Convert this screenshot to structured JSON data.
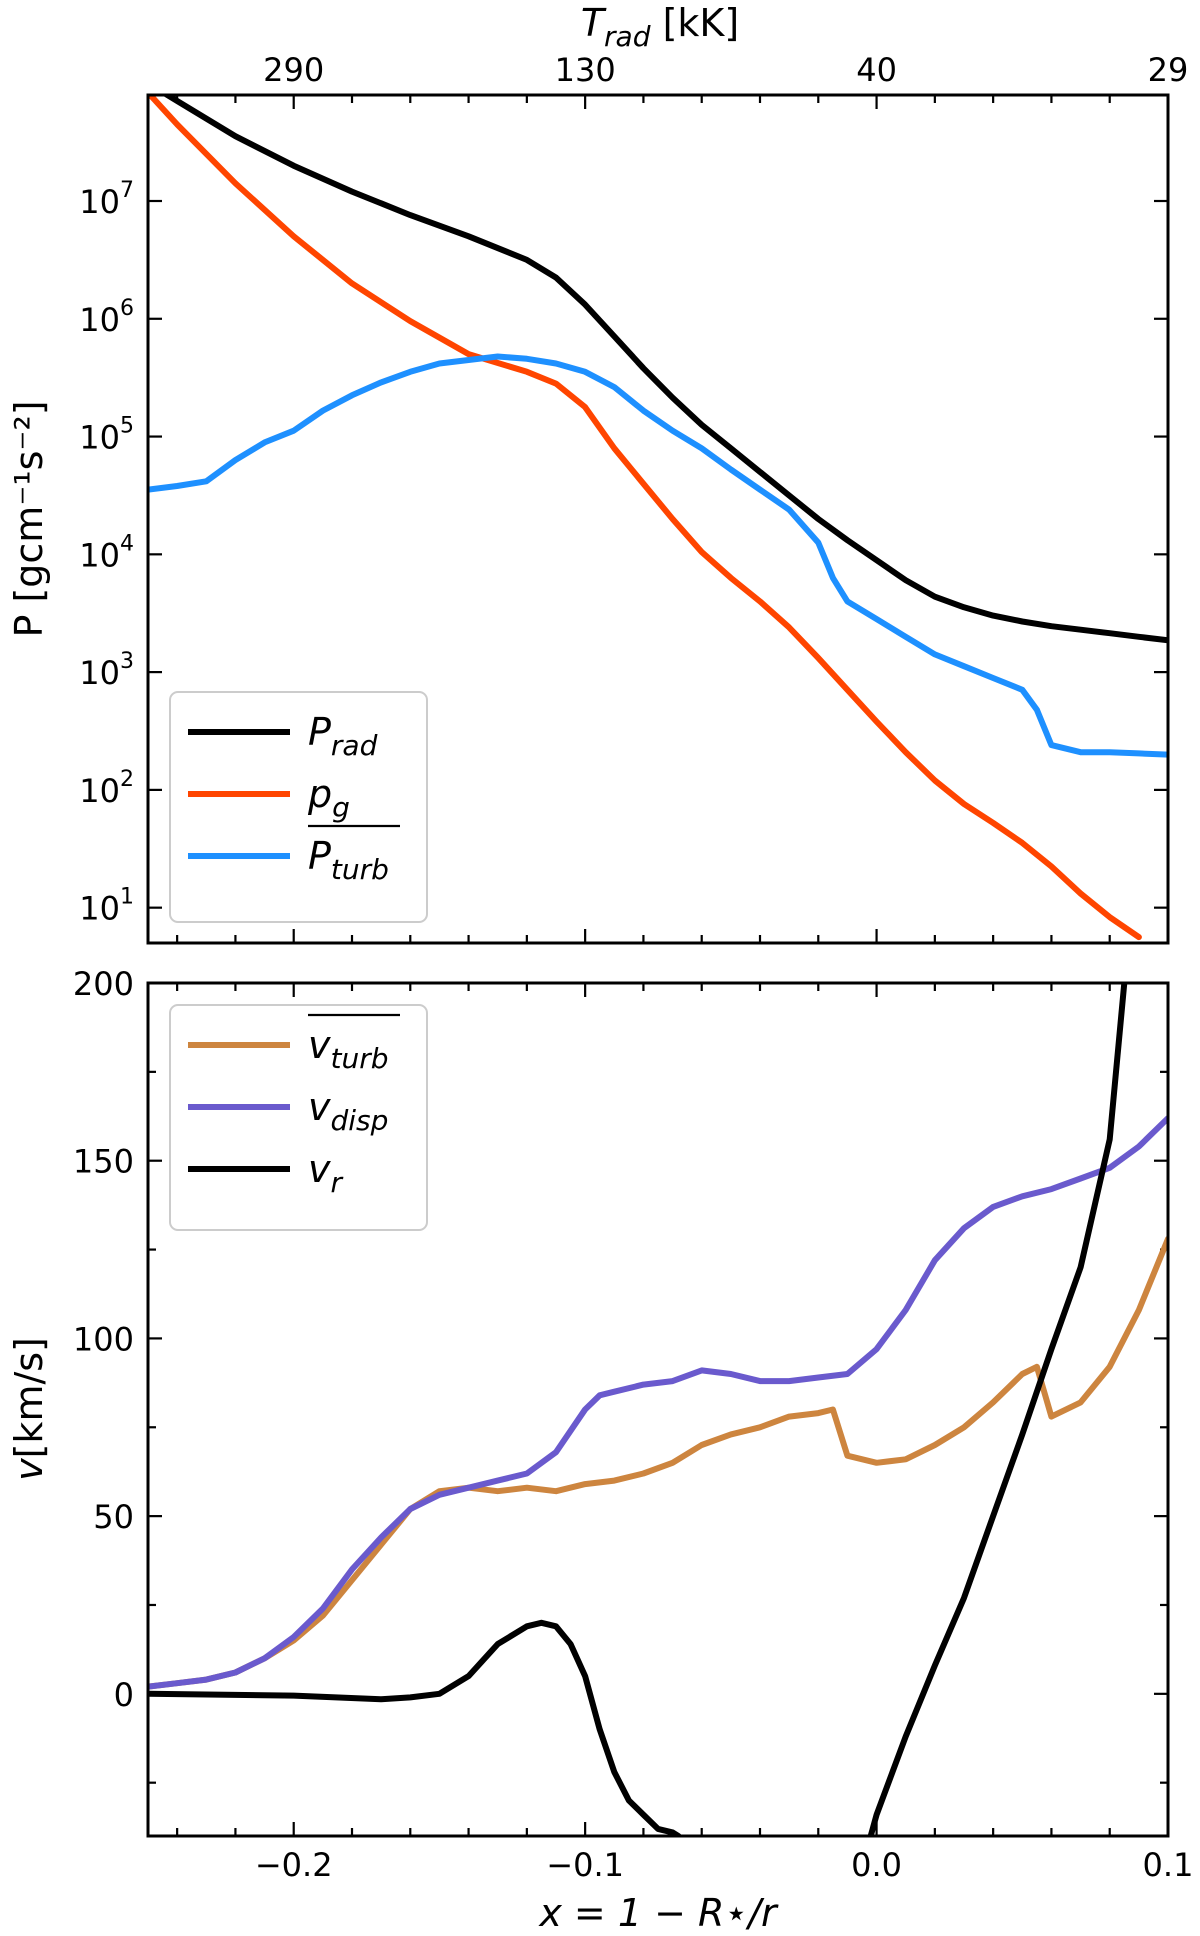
{
  "chart_data": [
    {
      "type": "line",
      "panel": "top",
      "xlim": [
        -0.25,
        0.1
      ],
      "ylabel": "P [gcm⁻¹s⁻²]",
      "yscale": "log",
      "ylim_log10": [
        0.7,
        7.9
      ],
      "y_tick_exponents": [
        1,
        2,
        3,
        4,
        5,
        6,
        7
      ],
      "y_tick_base": "10",
      "top_axis": {
        "label": "T",
        "label_sub": "rad",
        "label_units": " [kK]",
        "ticks": [
          {
            "x": -0.2,
            "label": "290"
          },
          {
            "x": -0.1,
            "label": "130"
          },
          {
            "x": 0.0,
            "label": "40"
          },
          {
            "x": 0.1,
            "label": "29"
          }
        ]
      },
      "legend": {
        "location": "lower-left",
        "entries": [
          {
            "main": "P",
            "sub": "rad",
            "overline": false,
            "color": "#000000"
          },
          {
            "main": "p",
            "sub": "g",
            "overline": false,
            "color": "#ff4500"
          },
          {
            "main": "P",
            "sub": "turb",
            "overline": true,
            "color": "#1e90ff"
          }
        ]
      },
      "series": [
        {
          "name": "P_rad",
          "color": "#000000",
          "x": [
            -0.25,
            -0.24,
            -0.22,
            -0.2,
            -0.18,
            -0.16,
            -0.14,
            -0.12,
            -0.11,
            -0.1,
            -0.09,
            -0.08,
            -0.07,
            -0.06,
            -0.05,
            -0.04,
            -0.03,
            -0.02,
            -0.01,
            0.0,
            0.01,
            0.02,
            0.03,
            0.04,
            0.05,
            0.06,
            0.07,
            0.08,
            0.09,
            0.1
          ],
          "log10_y": [
            8.0,
            7.85,
            7.55,
            7.3,
            7.08,
            6.88,
            6.7,
            6.5,
            6.35,
            6.12,
            5.85,
            5.58,
            5.33,
            5.1,
            4.9,
            4.7,
            4.5,
            4.3,
            4.12,
            3.95,
            3.78,
            3.64,
            3.55,
            3.48,
            3.43,
            3.39,
            3.36,
            3.33,
            3.3,
            3.27
          ]
        },
        {
          "name": "p_g",
          "color": "#ff4500",
          "x": [
            -0.25,
            -0.24,
            -0.22,
            -0.2,
            -0.18,
            -0.16,
            -0.14,
            -0.12,
            -0.11,
            -0.1,
            -0.09,
            -0.08,
            -0.07,
            -0.06,
            -0.05,
            -0.04,
            -0.03,
            -0.02,
            -0.01,
            0.0,
            0.01,
            0.02,
            0.03,
            0.04,
            0.05,
            0.06,
            0.07,
            0.08,
            0.09
          ],
          "log10_y": [
            7.92,
            7.65,
            7.15,
            6.7,
            6.3,
            5.98,
            5.7,
            5.55,
            5.45,
            5.25,
            4.9,
            4.6,
            4.3,
            4.02,
            3.8,
            3.6,
            3.38,
            3.12,
            2.85,
            2.58,
            2.32,
            2.08,
            1.88,
            1.72,
            1.55,
            1.35,
            1.12,
            0.92,
            0.75
          ]
        },
        {
          "name": "P_turb",
          "color": "#1e90ff",
          "x": [
            -0.25,
            -0.24,
            -0.23,
            -0.22,
            -0.21,
            -0.2,
            -0.19,
            -0.18,
            -0.17,
            -0.16,
            -0.15,
            -0.14,
            -0.13,
            -0.12,
            -0.11,
            -0.1,
            -0.09,
            -0.08,
            -0.07,
            -0.06,
            -0.05,
            -0.04,
            -0.03,
            -0.02,
            -0.015,
            -0.01,
            0.0,
            0.01,
            0.02,
            0.03,
            0.04,
            0.05,
            0.055,
            0.06,
            0.07,
            0.08,
            0.09,
            0.1
          ],
          "log10_y": [
            4.55,
            4.58,
            4.62,
            4.8,
            4.95,
            5.05,
            5.22,
            5.35,
            5.46,
            5.55,
            5.62,
            5.65,
            5.68,
            5.66,
            5.62,
            5.55,
            5.42,
            5.22,
            5.05,
            4.9,
            4.72,
            4.55,
            4.38,
            4.1,
            3.8,
            3.6,
            3.45,
            3.3,
            3.15,
            3.05,
            2.95,
            2.85,
            2.68,
            2.38,
            2.32,
            2.32,
            2.31,
            2.3
          ]
        }
      ]
    },
    {
      "type": "line",
      "panel": "bottom",
      "xlim": [
        -0.25,
        0.1
      ],
      "ylim": [
        -40,
        200
      ],
      "yticks": [
        0,
        50,
        100,
        150,
        200
      ],
      "ytick_labels": [
        "0",
        "50",
        "100",
        "150",
        "200"
      ],
      "xticks": [
        -0.2,
        -0.1,
        0.0,
        0.1
      ],
      "xtick_labels": [
        "−0.2",
        "−0.1",
        "0.0",
        "0.1"
      ],
      "ylabel_main": "v",
      "ylabel_rest": "[km/s]",
      "xlabel": "x = 1 − R⋆/r",
      "legend": {
        "location": "upper-left",
        "entries": [
          {
            "main": "v",
            "sub": "turb",
            "overline": true,
            "color": "#cd853f"
          },
          {
            "main": "v",
            "sub": "disp",
            "overline": false,
            "color": "#6a5acd"
          },
          {
            "main": "v",
            "sub": "r",
            "overline": false,
            "color": "#000000"
          }
        ]
      },
      "series": [
        {
          "name": "v_turb",
          "color": "#cd853f",
          "x": [
            -0.25,
            -0.24,
            -0.23,
            -0.22,
            -0.21,
            -0.2,
            -0.19,
            -0.18,
            -0.17,
            -0.16,
            -0.15,
            -0.14,
            -0.13,
            -0.12,
            -0.11,
            -0.1,
            -0.09,
            -0.08,
            -0.07,
            -0.06,
            -0.05,
            -0.04,
            -0.03,
            -0.02,
            -0.015,
            -0.01,
            0.0,
            0.01,
            0.02,
            0.03,
            0.04,
            0.05,
            0.055,
            0.06,
            0.07,
            0.08,
            0.09,
            0.1
          ],
          "y": [
            2,
            3,
            4,
            6,
            10,
            15,
            22,
            32,
            42,
            52,
            57,
            58,
            57,
            58,
            57,
            59,
            60,
            62,
            65,
            70,
            73,
            75,
            78,
            79,
            80,
            67,
            65,
            66,
            70,
            75,
            82,
            90,
            92,
            78,
            82,
            92,
            108,
            128
          ]
        },
        {
          "name": "v_disp",
          "color": "#6a5acd",
          "x": [
            -0.25,
            -0.24,
            -0.23,
            -0.22,
            -0.21,
            -0.2,
            -0.19,
            -0.18,
            -0.17,
            -0.16,
            -0.15,
            -0.14,
            -0.13,
            -0.12,
            -0.11,
            -0.1,
            -0.095,
            -0.09,
            -0.08,
            -0.07,
            -0.06,
            -0.05,
            -0.04,
            -0.03,
            -0.02,
            -0.01,
            0.0,
            0.01,
            0.02,
            0.03,
            0.04,
            0.05,
            0.06,
            0.07,
            0.08,
            0.09,
            0.1
          ],
          "y": [
            2,
            3,
            4,
            6,
            10,
            16,
            24,
            35,
            44,
            52,
            56,
            58,
            60,
            62,
            68,
            80,
            84,
            85,
            87,
            88,
            91,
            90,
            88,
            88,
            89,
            90,
            97,
            108,
            122,
            131,
            137,
            140,
            142,
            145,
            148,
            154,
            162
          ]
        },
        {
          "name": "v_r",
          "color": "#000000",
          "x": [
            -0.25,
            -0.2,
            -0.17,
            -0.16,
            -0.15,
            -0.14,
            -0.13,
            -0.12,
            -0.115,
            -0.11,
            -0.105,
            -0.1,
            -0.095,
            -0.09,
            -0.085,
            -0.08,
            -0.075,
            -0.07,
            -0.068,
            -0.002,
            0.0,
            0.01,
            0.02,
            0.03,
            0.04,
            0.05,
            0.06,
            0.07,
            0.08,
            0.085
          ],
          "y": [
            0,
            -0.5,
            -1.5,
            -1,
            0,
            5,
            14,
            19,
            20,
            19,
            14,
            5,
            -10,
            -22,
            -30,
            -34,
            -38,
            -39,
            -40,
            -40,
            -34,
            -12,
            8,
            27,
            50,
            73,
            97,
            120,
            156,
            200
          ]
        }
      ]
    }
  ]
}
